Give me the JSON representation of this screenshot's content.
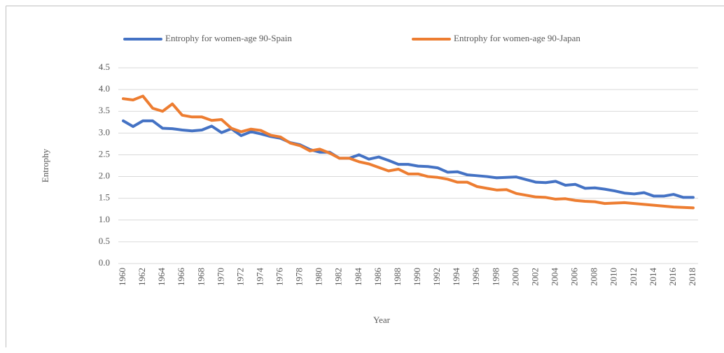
{
  "chart_data": {
    "type": "line",
    "x_label": "Year",
    "y_label": "Entrophy",
    "x": [
      1960,
      1961,
      1962,
      1963,
      1964,
      1965,
      1966,
      1967,
      1968,
      1969,
      1970,
      1971,
      1972,
      1973,
      1974,
      1975,
      1976,
      1977,
      1978,
      1979,
      1980,
      1981,
      1982,
      1983,
      1984,
      1985,
      1986,
      1987,
      1988,
      1989,
      1990,
      1991,
      1992,
      1993,
      1994,
      1995,
      1996,
      1997,
      1998,
      1999,
      2000,
      2001,
      2002,
      2003,
      2004,
      2005,
      2006,
      2007,
      2008,
      2009,
      2010,
      2011,
      2012,
      2013,
      2014,
      2015,
      2016,
      2017,
      2018
    ],
    "xlim": [
      1959.5,
      2018.5
    ],
    "xticks": [
      1960,
      1962,
      1964,
      1966,
      1968,
      1970,
      1972,
      1974,
      1976,
      1978,
      1980,
      1982,
      1984,
      1986,
      1988,
      1990,
      1992,
      1994,
      1996,
      1998,
      2000,
      2002,
      2004,
      2006,
      2008,
      2010,
      2012,
      2014,
      2016,
      2018
    ],
    "ylim": [
      0,
      4.5
    ],
    "yticks": [
      {
        "value": 0,
        "label": "0.0"
      },
      0.5,
      {
        "value": 1,
        "label": "1.0"
      },
      1.5,
      {
        "value": 2,
        "label": "2.0"
      },
      2.5,
      {
        "value": 3,
        "label": "3.0"
      },
      3.5,
      {
        "value": 4,
        "label": "4.0"
      },
      4.5
    ],
    "grid": true,
    "legend": "top",
    "series": [
      {
        "name": "Entrophy for women-age 90-Spain",
        "color": "#4472c4",
        "values": [
          3.28,
          3.15,
          3.28,
          3.28,
          3.11,
          3.1,
          3.07,
          3.05,
          3.07,
          3.16,
          3.01,
          3.1,
          2.94,
          3.03,
          2.98,
          2.92,
          2.88,
          2.78,
          2.73,
          2.62,
          2.56,
          2.56,
          2.42,
          2.42,
          2.5,
          2.4,
          2.45,
          2.37,
          2.28,
          2.28,
          2.24,
          2.23,
          2.2,
          2.1,
          2.11,
          2.04,
          2.02,
          2.0,
          1.97,
          1.98,
          1.99,
          1.93,
          1.87,
          1.86,
          1.89,
          1.8,
          1.82,
          1.73,
          1.74,
          1.71,
          1.67,
          1.62,
          1.6,
          1.63,
          1.55,
          1.55,
          1.59,
          1.52,
          1.52
        ]
      },
      {
        "name": "Entrophy for women-age 90-Japan",
        "color": "#ed7d31",
        "values": [
          3.79,
          3.76,
          3.85,
          3.57,
          3.5,
          3.67,
          3.41,
          3.37,
          3.37,
          3.29,
          3.31,
          3.11,
          3.03,
          3.09,
          3.06,
          2.95,
          2.91,
          2.77,
          2.71,
          2.59,
          2.63,
          2.54,
          2.42,
          2.42,
          2.34,
          2.29,
          2.21,
          2.13,
          2.17,
          2.06,
          2.06,
          2.0,
          1.98,
          1.94,
          1.87,
          1.87,
          1.77,
          1.73,
          1.69,
          1.7,
          1.61,
          1.57,
          1.53,
          1.52,
          1.48,
          1.49,
          1.45,
          1.43,
          1.42,
          1.38,
          1.39,
          1.4,
          1.38,
          1.36,
          1.34,
          1.32,
          1.3,
          1.29,
          1.28
        ]
      }
    ]
  }
}
